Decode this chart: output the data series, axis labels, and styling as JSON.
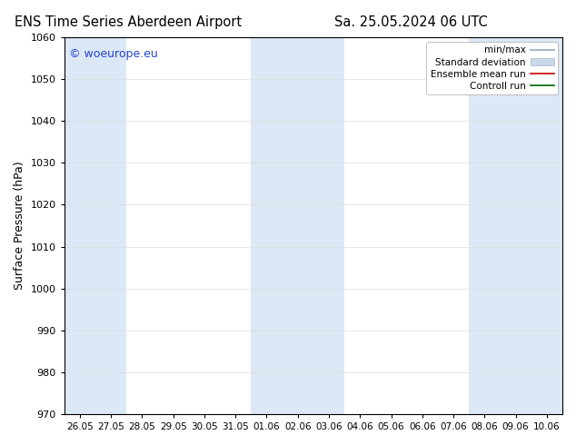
{
  "title_left": "ENS Time Series Aberdeen Airport",
  "title_right": "Sa. 25.05.2024 06 UTC",
  "ylabel": "Surface Pressure (hPa)",
  "watermark": "© woeurope.eu",
  "ylim": [
    970,
    1060
  ],
  "yticks": [
    970,
    980,
    990,
    1000,
    1010,
    1020,
    1030,
    1040,
    1050,
    1060
  ],
  "x_labels": [
    "26.05",
    "27.05",
    "28.05",
    "29.05",
    "30.05",
    "31.05",
    "01.06",
    "02.06",
    "03.06",
    "04.06",
    "05.06",
    "06.06",
    "07.06",
    "08.06",
    "09.06",
    "10.06"
  ],
  "shaded_indices": [
    0,
    1,
    6,
    7,
    8,
    13,
    14,
    15
  ],
  "legend": {
    "min_max": "min/max",
    "std_dev": "Standard deviation",
    "ensemble": "Ensemble mean run",
    "control": "Controll run"
  },
  "colors": {
    "background": "#ffffff",
    "plot_bg": "#ffffff",
    "shade_col": "#dce8f5",
    "minmax_line": "#a8b8c8",
    "std_fill": "#c8d8e8",
    "ensemble_line": "#cc0000",
    "control_line": "#006600",
    "title_color": "#000000",
    "watermark_color": "#2244cc",
    "grid_color": "#dddddd",
    "axis_color": "#000000"
  },
  "figsize": [
    6.34,
    4.9
  ],
  "dpi": 100
}
